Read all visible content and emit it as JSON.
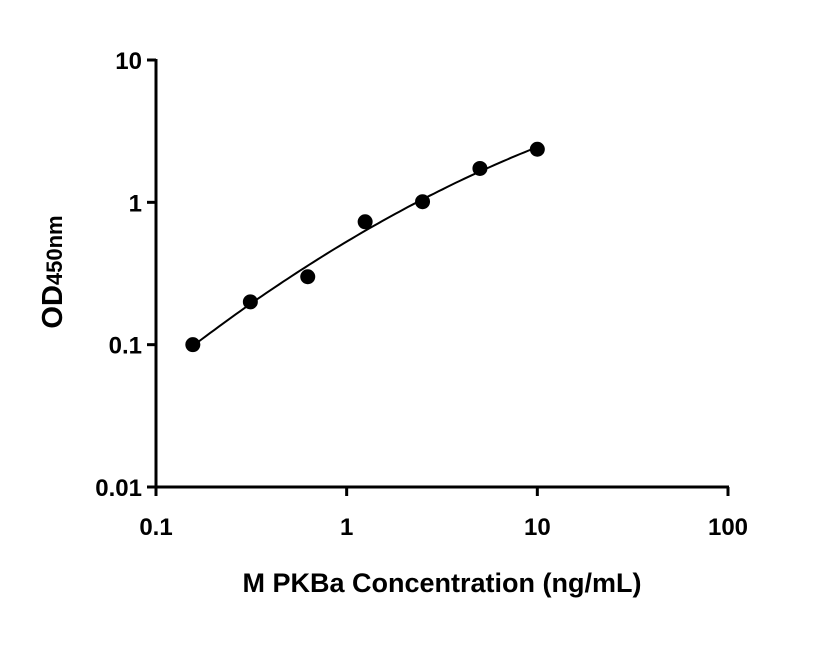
{
  "chart_data": {
    "type": "scatter",
    "xlabel": "M PKBa Concentration (ng/mL)",
    "ylabel_main": "OD",
    "ylabel_sub": "450nm",
    "xscale": "log",
    "yscale": "log",
    "xlim": [
      0.1,
      100
    ],
    "ylim": [
      0.01,
      10
    ],
    "xticks": [
      {
        "v": 0.1,
        "label": "0.1"
      },
      {
        "v": 1,
        "label": "1"
      },
      {
        "v": 10,
        "label": "10"
      },
      {
        "v": 100,
        "label": "100"
      }
    ],
    "yticks": [
      {
        "v": 0.01,
        "label": "0.01"
      },
      {
        "v": 0.1,
        "label": "0.1"
      },
      {
        "v": 1,
        "label": "1"
      },
      {
        "v": 10,
        "label": "10"
      }
    ],
    "grid": false,
    "fit_curve": true,
    "color": "#000000",
    "points": [
      {
        "x": 0.156,
        "y": 0.1
      },
      {
        "x": 0.3125,
        "y": 0.2
      },
      {
        "x": 0.625,
        "y": 0.3
      },
      {
        "x": 1.25,
        "y": 0.73
      },
      {
        "x": 2.5,
        "y": 1.01
      },
      {
        "x": 5,
        "y": 1.73
      },
      {
        "x": 10,
        "y": 2.36
      }
    ]
  }
}
